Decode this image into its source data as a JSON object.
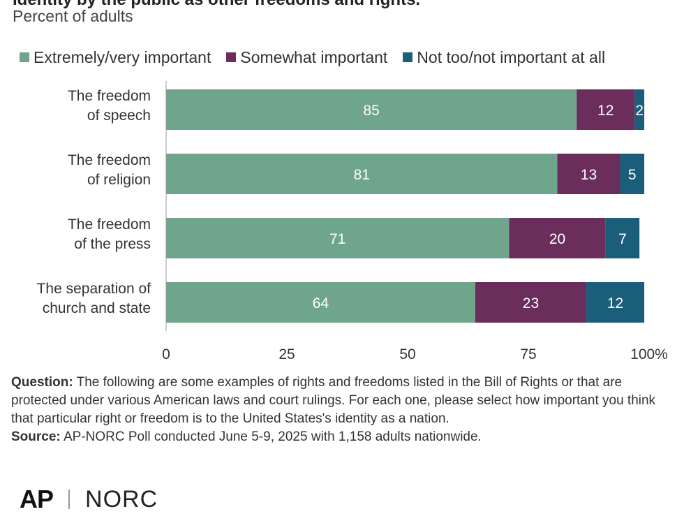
{
  "header": {
    "title": "Identity by the public as other freedoms and rights.",
    "subtitle": "Percent of adults"
  },
  "colors": {
    "important": "#6fa58a",
    "somewhat": "#6b2d5c",
    "not": "#1a5e7a",
    "axis": "#999999",
    "text": "#333333"
  },
  "legend": [
    {
      "label": "Extremely/very important",
      "color": "#6fa58a"
    },
    {
      "label": "Somewhat important",
      "color": "#6b2d5c"
    },
    {
      "label": "Not too/not important at all",
      "color": "#1a5e7a"
    }
  ],
  "chart_data": {
    "type": "bar",
    "orientation": "horizontal",
    "stacked": true,
    "title": "",
    "xlabel": "",
    "ylabel": "",
    "xlim": [
      0,
      100
    ],
    "categories": [
      [
        "The freedom",
        "of speech"
      ],
      [
        "The freedom",
        "of religion"
      ],
      [
        "The freedom",
        "of the press"
      ],
      [
        "The separation of",
        "church and state"
      ]
    ],
    "series": [
      {
        "name": "Extremely/very important",
        "values": [
          85,
          81,
          71,
          64
        ],
        "color": "#6fa58a"
      },
      {
        "name": "Somewhat important",
        "values": [
          12,
          13,
          20,
          23
        ],
        "color": "#6b2d5c"
      },
      {
        "name": "Not too/not important at all",
        "values": [
          2,
          5,
          7,
          12
        ],
        "color": "#1a5e7a"
      }
    ],
    "ticks": [
      "0",
      "25",
      "50",
      "75",
      "100%"
    ],
    "legend_position": "top"
  },
  "notes": {
    "question_label": "Question:",
    "question_text": "The following are some examples of rights and freedoms listed in the Bill of Rights or that are protected under various American laws and court rulings. For each one, please select how important you think that particular right or freedom is to the United States's identity as a nation.",
    "source_label": "Source:",
    "source_text": "AP-NORC Poll conducted June 5-9, 2025 with 1,158 adults nationwide."
  },
  "logos": {
    "ap": "AP",
    "norc": "NORC"
  }
}
